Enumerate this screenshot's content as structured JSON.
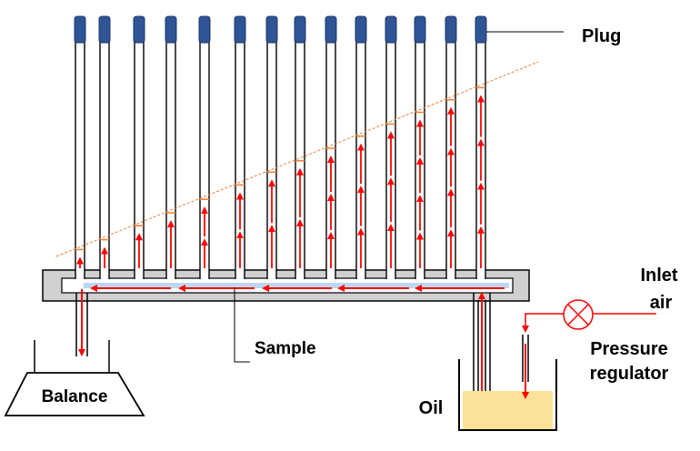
{
  "labels": {
    "plug": "Plug",
    "inlet_air": [
      "Inlet",
      "air"
    ],
    "pressure_regulator": [
      "Pressure",
      "regulator"
    ],
    "sample": "Sample",
    "balance": "Balance",
    "oil": "Oil"
  },
  "tube_count": 14,
  "colors": {
    "plug": "#2f5597",
    "arrow": "#ff0000",
    "sample_fill": "#bdd7ee",
    "oil": "#fbe29a",
    "manifold": "#d0d0d0",
    "fit_line": "#ed7d31",
    "outline": "#000000"
  }
}
